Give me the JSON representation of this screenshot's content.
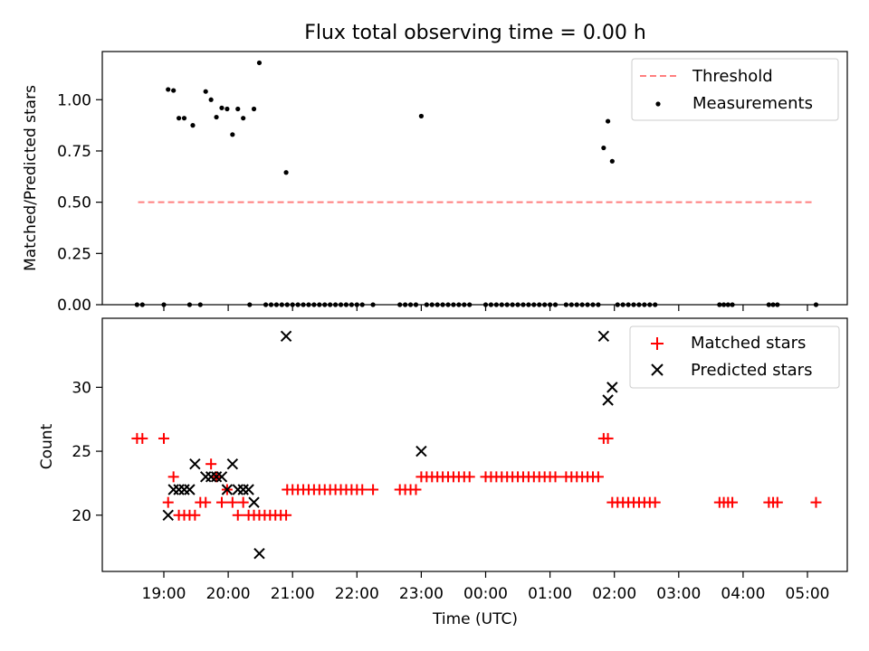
{
  "chart_data": [
    {
      "type": "scatter",
      "title": "Flux total observing time = 0.00 h",
      "xlabel": "",
      "ylabel": "Matched/Predicted stars",
      "x_unit": "time (UTC)",
      "ylim": [
        0,
        1.235
      ],
      "yticks": [
        0.0,
        0.25,
        0.5,
        0.75,
        1.0
      ],
      "ytick_labels": [
        "0.00",
        "0.25",
        "0.50",
        "0.75",
        "1.00"
      ],
      "legend_position": "top-right",
      "series": [
        {
          "name": "Threshold",
          "kind": "dashed-line",
          "color": "#ff7f7f",
          "x": [
            "18:36",
            "05:06"
          ],
          "y": [
            0.5,
            0.5
          ]
        },
        {
          "name": "Measurements",
          "kind": "points",
          "color": "#000000",
          "x": [
            "19:04",
            "19:09",
            "19:14",
            "19:19",
            "19:27",
            "19:39",
            "19:44",
            "19:49",
            "19:54",
            "19:59",
            "20:04",
            "20:09",
            "20:14",
            "20:24",
            "20:29",
            "20:54",
            "23:00",
            "01:50",
            "01:54",
            "01:58",
            "18:35",
            "18:40",
            "19:00",
            "19:24",
            "19:34",
            "20:20",
            "20:35",
            "20:40",
            "20:45",
            "20:50",
            "20:55",
            "21:00",
            "21:05",
            "21:10",
            "21:15",
            "21:20",
            "21:25",
            "21:30",
            "21:35",
            "21:40",
            "21:45",
            "21:50",
            "21:55",
            "22:00",
            "22:05",
            "22:15",
            "22:40",
            "22:45",
            "22:50",
            "22:55",
            "23:05",
            "23:10",
            "23:15",
            "23:20",
            "23:25",
            "23:30",
            "23:35",
            "23:40",
            "23:45",
            "00:00",
            "00:05",
            "00:10",
            "00:15",
            "00:20",
            "00:25",
            "00:30",
            "00:35",
            "00:40",
            "00:45",
            "00:50",
            "00:55",
            "01:00",
            "01:05",
            "01:15",
            "01:20",
            "01:25",
            "01:30",
            "01:35",
            "01:40",
            "01:45",
            "02:03",
            "02:08",
            "02:13",
            "02:18",
            "02:23",
            "02:28",
            "02:33",
            "02:38",
            "03:38",
            "03:42",
            "03:46",
            "03:50",
            "04:24",
            "04:28",
            "04:32",
            "05:08"
          ],
          "y": [
            1.05,
            1.045,
            0.91,
            0.91,
            0.875,
            1.04,
            1.0,
            0.915,
            0.96,
            0.955,
            0.83,
            0.955,
            0.91,
            0.955,
            1.18,
            0.645,
            0.92,
            0.765,
            0.895,
            0.7,
            0,
            0,
            0,
            0,
            0,
            0,
            0,
            0,
            0,
            0,
            0,
            0,
            0,
            0,
            0,
            0,
            0,
            0,
            0,
            0,
            0,
            0,
            0,
            0,
            0,
            0,
            0,
            0,
            0,
            0,
            0,
            0,
            0,
            0,
            0,
            0,
            0,
            0,
            0,
            0,
            0,
            0,
            0,
            0,
            0,
            0,
            0,
            0,
            0,
            0,
            0,
            0,
            0,
            0,
            0,
            0,
            0,
            0,
            0,
            0,
            0,
            0,
            0,
            0,
            0,
            0,
            0,
            0,
            0,
            0,
            0,
            0,
            0,
            0,
            0,
            0
          ]
        }
      ]
    },
    {
      "type": "scatter",
      "title": "",
      "xlabel": "Time (UTC)",
      "ylabel": "Count",
      "ylim": [
        15.6,
        35.4
      ],
      "yticks": [
        20,
        25,
        30
      ],
      "ytick_labels": [
        "20",
        "25",
        "30"
      ],
      "xtick_labels": [
        "19:00",
        "20:00",
        "21:00",
        "22:00",
        "23:00",
        "00:00",
        "01:00",
        "02:00",
        "03:00",
        "04:00",
        "05:00"
      ],
      "legend_position": "top-right",
      "series": [
        {
          "name": "Matched stars",
          "kind": "plus",
          "color": "#ff0000",
          "x": [
            "18:35",
            "18:40",
            "19:00",
            "19:04",
            "19:09",
            "19:14",
            "19:19",
            "19:24",
            "19:29",
            "19:34",
            "19:39",
            "19:44",
            "19:49",
            "19:54",
            "19:59",
            "20:04",
            "20:09",
            "20:14",
            "20:19",
            "20:24",
            "20:29",
            "20:34",
            "20:39",
            "20:44",
            "20:49",
            "20:54",
            "20:55",
            "21:00",
            "21:05",
            "21:10",
            "21:15",
            "21:20",
            "21:25",
            "21:30",
            "21:35",
            "21:40",
            "21:45",
            "21:50",
            "21:55",
            "22:00",
            "22:05",
            "22:15",
            "22:40",
            "22:45",
            "22:50",
            "22:55",
            "23:00",
            "23:05",
            "23:10",
            "23:15",
            "23:20",
            "23:25",
            "23:30",
            "23:35",
            "23:40",
            "23:45",
            "00:00",
            "00:05",
            "00:10",
            "00:15",
            "00:20",
            "00:25",
            "00:30",
            "00:35",
            "00:40",
            "00:45",
            "00:50",
            "00:55",
            "01:00",
            "01:05",
            "01:15",
            "01:20",
            "01:25",
            "01:30",
            "01:35",
            "01:40",
            "01:45",
            "01:50",
            "01:54",
            "01:58",
            "02:03",
            "02:08",
            "02:13",
            "02:18",
            "02:23",
            "02:28",
            "02:33",
            "02:38",
            "03:38",
            "03:42",
            "03:46",
            "03:50",
            "04:24",
            "04:28",
            "04:32",
            "05:08"
          ],
          "y": [
            26,
            26,
            26,
            21,
            23,
            20,
            20,
            20,
            20,
            21,
            21,
            24,
            23,
            21,
            22,
            21,
            20,
            21,
            20,
            20,
            20,
            20,
            20,
            20,
            20,
            20,
            22,
            22,
            22,
            22,
            22,
            22,
            22,
            22,
            22,
            22,
            22,
            22,
            22,
            22,
            22,
            22,
            22,
            22,
            22,
            22,
            23,
            23,
            23,
            23,
            23,
            23,
            23,
            23,
            23,
            23,
            23,
            23,
            23,
            23,
            23,
            23,
            23,
            23,
            23,
            23,
            23,
            23,
            23,
            23,
            23,
            23,
            23,
            23,
            23,
            23,
            23,
            26,
            26,
            21,
            21,
            21,
            21,
            21,
            21,
            21,
            21,
            21,
            21,
            21,
            21,
            21,
            21,
            21,
            21,
            21
          ]
        },
        {
          "name": "Predicted stars",
          "kind": "x",
          "color": "#000000",
          "x": [
            "19:04",
            "19:09",
            "19:14",
            "19:19",
            "19:24",
            "19:29",
            "19:39",
            "19:44",
            "19:49",
            "19:54",
            "19:59",
            "20:04",
            "20:09",
            "20:14",
            "20:19",
            "20:24",
            "20:29",
            "20:54",
            "23:00",
            "01:50",
            "01:54",
            "01:58"
          ],
          "y": [
            20,
            22,
            22,
            22,
            22,
            24,
            23,
            23,
            23,
            23,
            22,
            24,
            22,
            22,
            22,
            21,
            17,
            34,
            25,
            34,
            29,
            30
          ]
        }
      ]
    }
  ]
}
